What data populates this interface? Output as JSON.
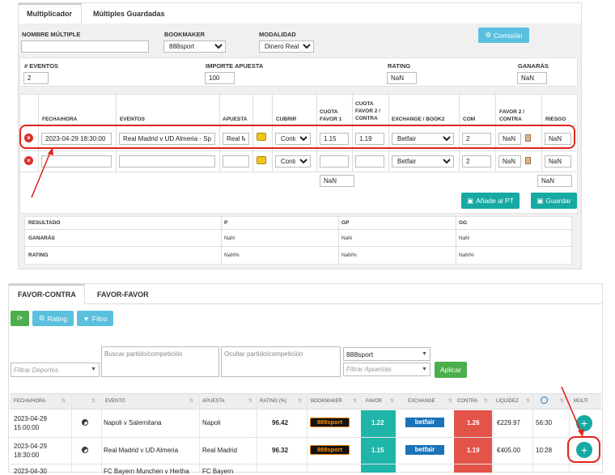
{
  "top_tabs": {
    "multiplicador": "Multiplicador",
    "multiples": "Múltiples Guardadas"
  },
  "form": {
    "nombre_label": "NOMBRE MÚLTIPLE",
    "nombre_value": "",
    "bookmaker_label": "BOOKMAKER",
    "bookmaker_value": "888sport",
    "modalidad_label": "MODALIDAD",
    "modalidad_value": "Dinero Real",
    "comision_button": "Comisión",
    "eventos_label": "# EVENTOS",
    "eventos_value": "2",
    "importe_label": "IMPORTE APUESTA",
    "importe_value": "100",
    "rating_label": "RATING",
    "rating_value": "NaN",
    "ganaras_label": "GANARÁS",
    "ganaras_value": "NaN"
  },
  "events_table": {
    "headers": [
      "FECHA/HORA",
      "EVENTOS",
      "APUESTA",
      "CUBRIR",
      "CUOTA FAVOR 1",
      "CUOTA FAVOR 2 / CONTRA",
      "EXCHANGE / BOOK2",
      "COM",
      "FAVOR 2 / CONTRA",
      "RIESGO"
    ],
    "rows": [
      {
        "fecha": "2023-04-29 18:30:00",
        "evento": "Real Madrid v UD Almeria - Spain",
        "apuesta": "Real Madrid",
        "cubrir": "Contra",
        "cuota1": "1.15",
        "cuota2": "1.19",
        "exchange": "Betfair",
        "com": "2",
        "favor2": "NaN",
        "riesgo": "NaN"
      },
      {
        "fecha": "",
        "evento": "",
        "apuesta": "",
        "cubrir": "Contra",
        "cuota1": "",
        "cuota2": "",
        "exchange": "Betfair",
        "com": "2",
        "favor2": "NaN",
        "riesgo": "NaN"
      }
    ],
    "total_cuota": "NaN",
    "total_riesgo": "NaN",
    "add_pt_button": "Añade al PT",
    "save_button": "Guardar"
  },
  "results": {
    "headers": [
      "RESULTADO",
      "P",
      "GP",
      "GG"
    ],
    "rows": [
      {
        "label": "GANARÁS",
        "p": "NaN",
        "gp": "NaN",
        "gg": "NaN"
      },
      {
        "label": "RATING",
        "p": "NaN%",
        "gp": "NaN%",
        "gg": "NaN%"
      }
    ]
  },
  "bottom_tabs": {
    "favor_contra": "FAVOR-CONTRA",
    "favor_favor": "FAVOR-FAVOR"
  },
  "toolbar": {
    "rating": "Rating",
    "filtro": "Filtro"
  },
  "filters": {
    "deportes_placeholder": "Filtrar Deportes",
    "buscar_placeholder": "Buscar partido/competición",
    "ocultar_placeholder": "Ocultar partido/competición",
    "bookmaker_value": "888sport",
    "apuestas_placeholder": "Filtrar Apuestas",
    "aplicar": "Aplicar"
  },
  "grid": {
    "headers": {
      "fecha": "FECHA/HORA",
      "evento": "EVENTO",
      "apuesta": "APUESTA",
      "rating": "RATING (%)",
      "bookmaker": "BOOKMAKER",
      "favor": "FAVOR",
      "exchange": "EXCHANGE",
      "contra": "CONTRA",
      "liquidez": "LIQUIDEZ",
      "multi": "MÚLTI"
    },
    "rows": [
      {
        "fecha1": "2023-04-29",
        "fecha2": "15:00:00",
        "evento": "Napoli v Salernitana",
        "apuesta": "Napoli",
        "rating": "96.42",
        "bookmaker": "888sport",
        "favor": "1.22",
        "exchange": "betfair",
        "contra": "1.26",
        "liquidez": "€229.97",
        "tiempo": "56:30"
      },
      {
        "fecha1": "2023-04-29",
        "fecha2": "18:30:00",
        "evento": "Real Madrid v UD Almeria",
        "apuesta": "Real Madrid",
        "rating": "96.32",
        "bookmaker": "888sport",
        "favor": "1.15",
        "exchange": "betfair",
        "contra": "1.19",
        "liquidez": "€405.00",
        "tiempo": "10:28"
      },
      {
        "fecha1": "2023-04-30",
        "fecha2": "",
        "evento": "FC Bayern Munchen v Hertha",
        "apuesta": "FC Bayern",
        "rating": "",
        "bookmaker": "",
        "favor": "",
        "exchange": "",
        "contra": "",
        "liquidez": "",
        "tiempo": ""
      }
    ]
  },
  "colors": {
    "teal": "#17a9a3",
    "favor": "#1fb5a8",
    "contra": "#e2534a",
    "betfair": "#1a73b8",
    "annotation": "#e0251b"
  }
}
